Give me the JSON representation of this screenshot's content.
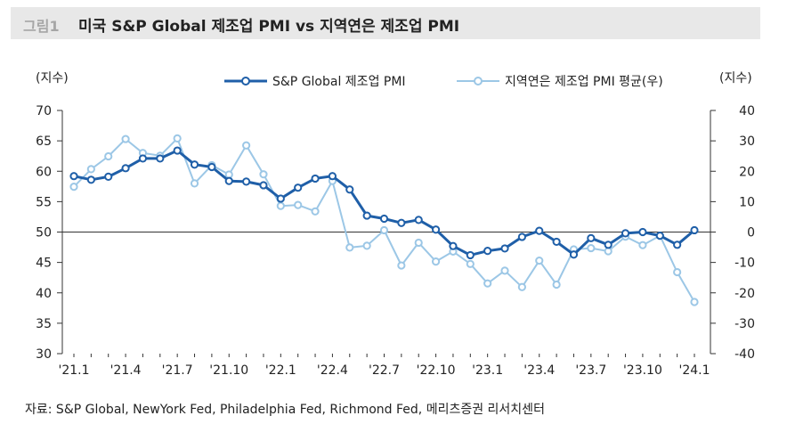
{
  "header": {
    "figure_no": "그림1",
    "title": "미국 S&P Global 제조업 PMI vs 지역연은 제조업 PMI"
  },
  "source": "자료: S&P Global, NewYork Fed, Philadelphia Fed, Richmond Fed, 메리츠증권 리서치센터",
  "colors": {
    "primary": "#1f5fa8",
    "secondary": "#9cc7e6",
    "header_bg": "#e8e8e8"
  },
  "chart_data": {
    "type": "line",
    "title": "미국 S&P Global 제조업 PMI vs 지역연은 제조업 PMI",
    "left_axis_label": "(지수)",
    "right_axis_label": "(지수)",
    "left_ylim": [
      30,
      70
    ],
    "right_ylim": [
      -40,
      40
    ],
    "left_ticks": [
      30,
      35,
      40,
      45,
      50,
      55,
      60,
      65,
      70
    ],
    "right_ticks": [
      -40,
      -30,
      -20,
      -10,
      0,
      10,
      20,
      30,
      40
    ],
    "x_tick_labels": [
      "'21.1",
      "'21.4",
      "'21.7",
      "'21.10",
      "'22.1",
      "'22.4",
      "'22.7",
      "'22.10",
      "'23.1",
      "'23.4",
      "'23.7",
      "'23.10",
      "'24.1"
    ],
    "x_count": 37,
    "series": [
      {
        "name": "S&P Global 제조업 PMI",
        "axis": "left",
        "color": "#1f5fa8",
        "values": [
          59.2,
          58.6,
          59.1,
          60.5,
          62.1,
          62.1,
          63.4,
          61.1,
          60.7,
          58.4,
          58.3,
          57.7,
          55.5,
          57.3,
          58.8,
          59.2,
          57.0,
          52.7,
          52.2,
          51.5,
          52.0,
          50.4,
          47.7,
          46.2,
          46.9,
          47.3,
          49.2,
          50.2,
          48.4,
          46.3,
          49.0,
          47.9,
          49.8,
          50.0,
          49.4,
          47.9,
          50.3
        ]
      },
      {
        "name": "지역연은 제조업 PMI 평균(우)",
        "axis": "right",
        "color": "#9cc7e6",
        "values": [
          14.9,
          20.7,
          24.9,
          30.6,
          26.0,
          25.1,
          30.8,
          16.0,
          22.0,
          18.9,
          28.5,
          19.0,
          8.6,
          8.9,
          6.8,
          16.8,
          -5.1,
          -4.5,
          0.6,
          -11.0,
          -3.5,
          -9.7,
          -6.4,
          -10.5,
          -16.9,
          -12.7,
          -18.1,
          -9.4,
          -17.3,
          -5.7,
          -5.3,
          -6.3,
          -1.5,
          -4.3,
          -1.2,
          -13.2,
          -23.0
        ]
      }
    ]
  }
}
